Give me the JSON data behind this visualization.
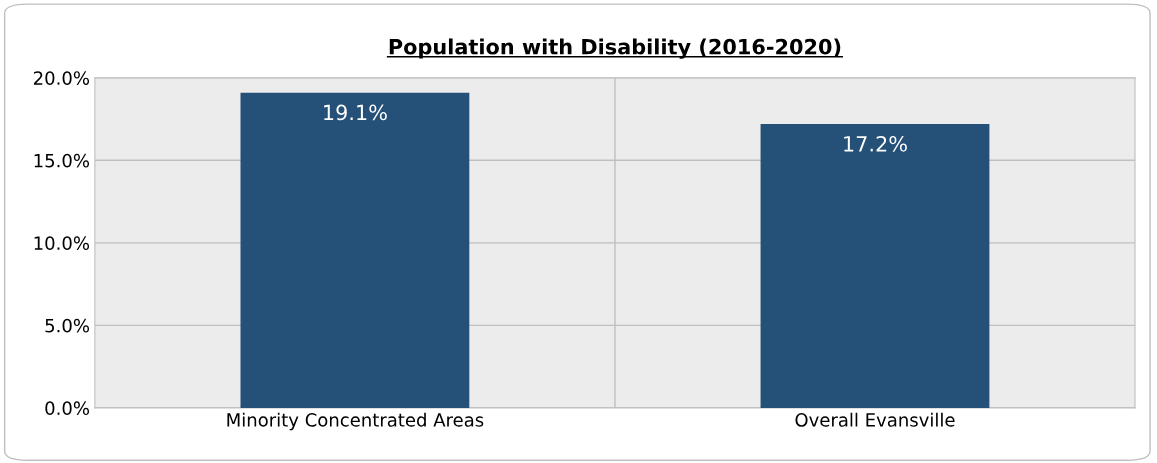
{
  "chart_data": {
    "type": "bar",
    "title": "Population with Disability (2016-2020)",
    "categories": [
      "Minority Concentrated Areas",
      "Overall Evansville"
    ],
    "values": [
      19.1,
      17.2
    ],
    "value_labels": [
      "19.1%",
      "17.2%"
    ],
    "color": "#255179",
    "ylim": [
      0,
      20
    ],
    "yticks": [
      {
        "value": 0,
        "label": "0.0%"
      },
      {
        "value": 5,
        "label": "5.0%"
      },
      {
        "value": 10,
        "label": "10.0%"
      },
      {
        "value": 15,
        "label": "15.0%"
      },
      {
        "value": 20,
        "label": "20.0%"
      }
    ],
    "grid": true
  }
}
